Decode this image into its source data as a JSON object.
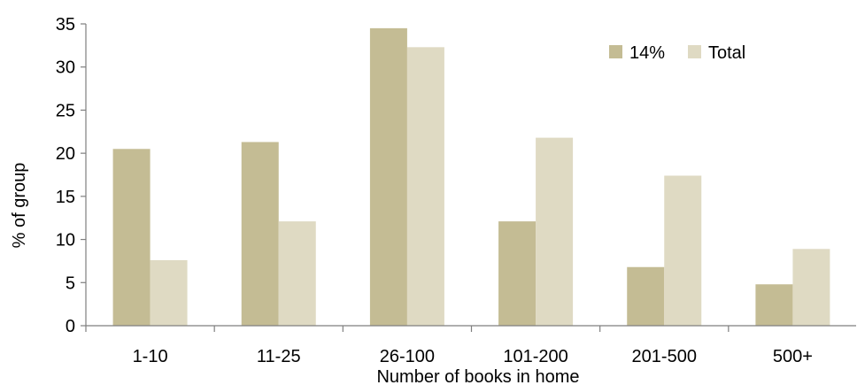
{
  "chart_data": {
    "type": "bar",
    "xlabel": "Number of books in home",
    "ylabel": "% of group",
    "ylim": [
      0,
      35
    ],
    "yticks": [
      0,
      5,
      10,
      15,
      20,
      25,
      30,
      35
    ],
    "grid": false,
    "legend_position": "top-right",
    "categories": [
      "1-10",
      "11-25",
      "26-100",
      "101-200",
      "201-500",
      "500+"
    ],
    "series": [
      {
        "name": "14%",
        "color": "#c4bc94",
        "values": [
          20.5,
          21.3,
          34.5,
          12.1,
          6.8,
          4.8
        ]
      },
      {
        "name": "Total",
        "color": "#dfdac3",
        "values": [
          7.6,
          12.1,
          32.3,
          21.8,
          17.4,
          8.9
        ]
      }
    ]
  }
}
